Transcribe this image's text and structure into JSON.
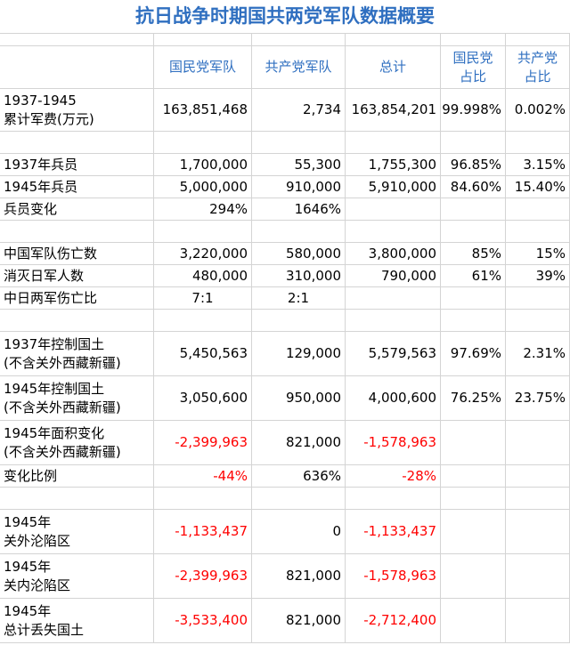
{
  "title": "抗日战争时期国共两党军队数据概要",
  "header": [
    "国民党军队",
    "共产党军队",
    "总计",
    "国民党\n占比",
    "共产党\n占比"
  ],
  "rows": [
    {
      "label": "1937-1945\n累计军费(万元)",
      "cells": [
        "163,851,468",
        "2,734",
        "163,854,201",
        "99.998%",
        "0.002%"
      ]
    },
    {
      "label": "1937年兵员",
      "cells": [
        "1,700,000",
        "55,300",
        "1,755,300",
        "96.85%",
        "3.15%"
      ]
    },
    {
      "label": "1945年兵员",
      "cells": [
        "5,000,000",
        "910,000",
        "5,910,000",
        "84.60%",
        "15.40%"
      ]
    },
    {
      "label": "兵员变化",
      "cells": [
        "294%",
        "1646%",
        null,
        null,
        null
      ]
    },
    {
      "label": "中国军队伤亡数",
      "cells": [
        "3,220,000",
        "580,000",
        "3,800,000",
        "85%",
        "15%"
      ]
    },
    {
      "label": "消灭日军人数",
      "cells": [
        "480,000",
        "310,000",
        "790,000",
        "61%",
        "39%"
      ]
    },
    {
      "label": "中日两军伤亡比",
      "cells": [
        "7:1",
        "2:1",
        null,
        null,
        null
      ]
    },
    {
      "label": "1937年控制国土\n(不含关外西藏新疆)",
      "cells": [
        "5,450,563",
        "129,000",
        "5,579,563",
        "97.69%",
        "2.31%"
      ]
    },
    {
      "label": "1945年控制国土\n(不含关外西藏新疆)",
      "cells": [
        "3,050,600",
        "950,000",
        "4,000,600",
        "76.25%",
        "23.75%"
      ]
    },
    {
      "label": "1945年面积变化\n(不含关外西藏新疆)",
      "cells": [
        "-2,399,963",
        "821,000",
        "-1,578,963",
        null,
        null
      ]
    },
    {
      "label": "变化比例",
      "cells": [
        "-44%",
        "636%",
        "-28%",
        null,
        null
      ]
    },
    {
      "label": "1945年\n关外沦陷区",
      "cells": [
        "-1,133,437",
        "0",
        "-1,133,437",
        null,
        null
      ]
    },
    {
      "label": "1945年\n关内沦陷区",
      "cells": [
        "-2,399,963",
        "821,000",
        "-1,578,963",
        null,
        null
      ]
    },
    {
      "label": "1945年\n总计丢失国土",
      "cells": [
        "-3,533,400",
        "821,000",
        "-2,712,400",
        null,
        null
      ]
    }
  ]
}
